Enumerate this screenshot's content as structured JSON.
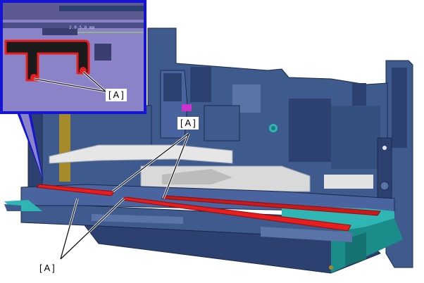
{
  "callouts": {
    "inset_label": "[ A ]",
    "upper_label": "[ A ]",
    "lower_label": "[ A ]"
  },
  "inset": {
    "readout": "2.0   5.0 mm"
  },
  "colors": {
    "inset_border": "#1414d2",
    "highlight": "#e81e1e",
    "body_dark": "#2c4170",
    "body_mid": "#3f5a8c",
    "body_light": "#5a74a8",
    "inset_bg": "#8b83c7",
    "teal": "#2fb6b4",
    "magenta": "#cc33cc",
    "ochre": "#a58a2a"
  }
}
